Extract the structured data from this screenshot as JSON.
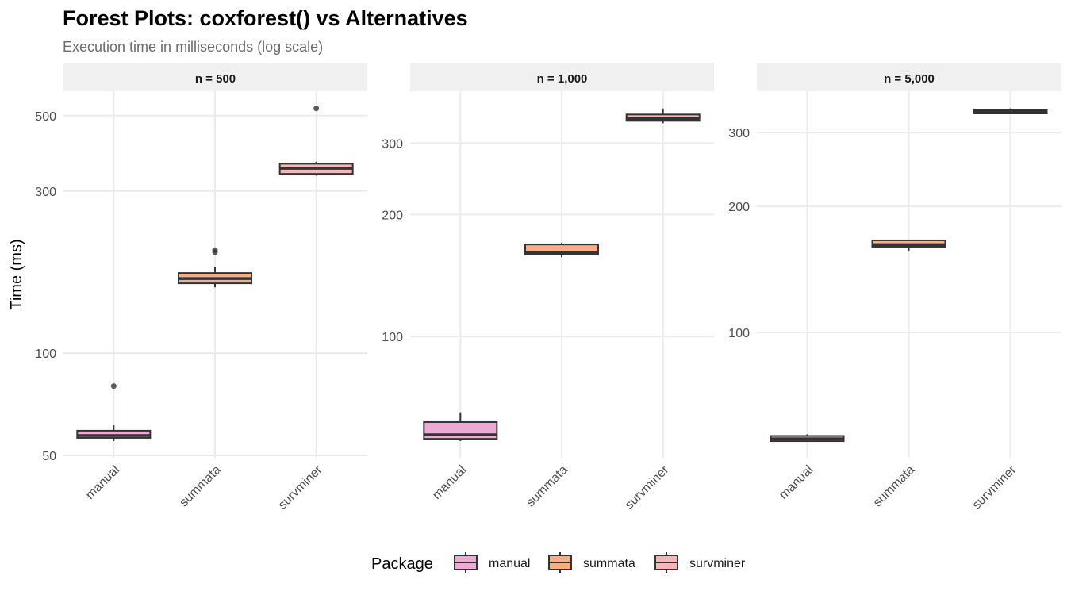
{
  "header": {
    "title": "Forest Plots: coxforest() vs Alternatives",
    "subtitle": "Execution time in milliseconds (log scale)"
  },
  "colors": {
    "manual": "#eeaad4",
    "summata": "#fdac86",
    "survminer": "#fbb4b5",
    "outline": "#333333",
    "strip": "#f0f0f0",
    "grid": "#ebebeb"
  },
  "chart_data": {
    "type": "boxplot",
    "title": "Forest Plots: coxforest() vs Alternatives",
    "subtitle": "Execution time in milliseconds (log scale)",
    "xlabel": "",
    "ylabel": "Time (ms)",
    "yscale": "log",
    "grid": true,
    "legend": {
      "title": "Package",
      "position": "bottom",
      "entries": [
        "manual",
        "summata",
        "survminer"
      ]
    },
    "categories": [
      "manual",
      "summata",
      "survminer"
    ],
    "panels": [
      {
        "label": "n = 500",
        "ylim": [
          49.2,
          590
        ],
        "yticks": [
          50,
          100,
          300,
          500
        ],
        "ytick_labels": [
          "50",
          "100",
          "300",
          "500"
        ],
        "boxes": [
          {
            "category": "manual",
            "whisker_low": 55.1,
            "q1": 56.3,
            "median": 57.2,
            "q3": 59.1,
            "whisker_high": 61.3,
            "outliers": [
              80
            ]
          },
          {
            "category": "summata",
            "whisker_low": 156.2,
            "q1": 160.5,
            "median": 165.7,
            "q3": 172.1,
            "whisker_high": 179.7,
            "outliers": [
              198,
              201
            ]
          },
          {
            "category": "survminer",
            "whisker_low": 333,
            "q1": 337,
            "median": 350,
            "q3": 361,
            "whisker_high": 366,
            "outliers": [
              525
            ]
          }
        ]
      },
      {
        "label": "n = 1,000",
        "ylim": [
          50.2,
          403
        ],
        "yticks": [
          100,
          200,
          300
        ],
        "ytick_labels": [
          "100",
          "200",
          "300"
        ],
        "boxes": [
          {
            "category": "manual",
            "whisker_low": 55.2,
            "q1": 55.9,
            "median": 57.2,
            "q3": 61.5,
            "whisker_high": 65.0,
            "outliers": []
          },
          {
            "category": "summata",
            "whisker_low": 156.9,
            "q1": 159.4,
            "median": 161.2,
            "q3": 168.7,
            "whisker_high": 170.2,
            "outliers": []
          },
          {
            "category": "survminer",
            "whisker_low": 336.1,
            "q1": 340.6,
            "median": 344.5,
            "q3": 353.1,
            "whisker_high": 365.3,
            "outliers": []
          }
        ]
      },
      {
        "label": "n = 5,000",
        "ylim": [
          50.2,
          376.6
        ],
        "yticks": [
          100,
          200,
          300
        ],
        "ytick_labels": [
          "100",
          "200",
          "300"
        ],
        "boxes": [
          {
            "category": "manual",
            "whisker_low": 54.9,
            "q1": 55.0,
            "median": 55.7,
            "q3": 56.6,
            "whisker_high": 57.1,
            "outliers": []
          },
          {
            "category": "summata",
            "whisker_low": 156.1,
            "q1": 160.2,
            "median": 162.0,
            "q3": 165.9,
            "whisker_high": 166.6,
            "outliers": []
          },
          {
            "category": "survminer",
            "whisker_low": 332.6,
            "q1": 333.3,
            "median": 336.9,
            "q3": 340.6,
            "whisker_high": 342.8,
            "outliers": []
          }
        ]
      }
    ]
  }
}
